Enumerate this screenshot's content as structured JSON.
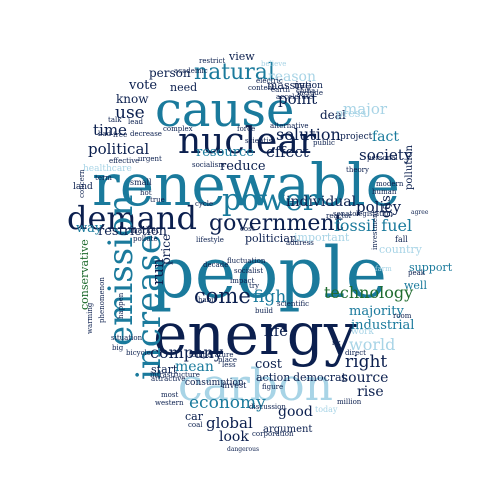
{
  "colors": {
    "navy": "#0b1f4e",
    "teal": "#1a7a9c",
    "light_blue": "#a8d4e6",
    "green": "#1f6b2e",
    "dark_teal": "#0f4c6b"
  },
  "words": [
    {
      "text": "people",
      "color": "teal"
    },
    {
      "text": "renewable",
      "color": "teal"
    },
    {
      "text": "energy",
      "color": "navy"
    },
    {
      "text": "cause",
      "color": "teal"
    },
    {
      "text": "carbon",
      "color": "light_blue"
    },
    {
      "text": "nuclear",
      "color": "navy"
    },
    {
      "text": "demand",
      "color": "navy"
    },
    {
      "text": "power",
      "color": "teal"
    },
    {
      "text": "emission",
      "color": "teal"
    },
    {
      "text": "increase",
      "color": "teal"
    },
    {
      "text": "natural",
      "color": "teal"
    },
    {
      "text": "government",
      "color": "navy"
    },
    {
      "text": "technology",
      "color": "green"
    },
    {
      "text": "fossil fuel",
      "color": "teal"
    },
    {
      "text": "economy",
      "color": "teal"
    },
    {
      "text": "come",
      "color": "navy"
    },
    {
      "text": "fight",
      "color": "teal"
    },
    {
      "text": "solution",
      "color": "navy"
    },
    {
      "text": "policy",
      "color": "navy"
    },
    {
      "text": "individual",
      "color": "navy"
    },
    {
      "text": "company",
      "color": "navy"
    },
    {
      "text": "political",
      "color": "navy"
    },
    {
      "text": "world",
      "color": "light_blue"
    },
    {
      "text": "right",
      "color": "navy"
    },
    {
      "text": "global",
      "color": "navy"
    },
    {
      "text": "use",
      "color": "navy"
    },
    {
      "text": "time",
      "color": "navy"
    },
    {
      "text": "point",
      "color": "navy"
    },
    {
      "text": "effect",
      "color": "navy"
    },
    {
      "text": "society",
      "color": "navy"
    },
    {
      "text": "reason",
      "color": "light_blue"
    },
    {
      "text": "major",
      "color": "light_blue"
    },
    {
      "text": "restriction",
      "color": "navy"
    },
    {
      "text": "resource",
      "color": "teal"
    },
    {
      "text": "reduce",
      "color": "navy"
    },
    {
      "text": "fact",
      "color": "teal"
    },
    {
      "text": "gas",
      "color": "navy"
    },
    {
      "text": "industrial",
      "color": "teal"
    },
    {
      "text": "majority",
      "color": "teal"
    },
    {
      "text": "good",
      "color": "navy"
    },
    {
      "text": "source",
      "color": "navy"
    },
    {
      "text": "rise",
      "color": "navy"
    },
    {
      "text": "cost",
      "color": "navy"
    },
    {
      "text": "life",
      "color": "navy"
    },
    {
      "text": "look",
      "color": "navy"
    },
    {
      "text": "mean",
      "color": "teal"
    },
    {
      "text": "run",
      "color": "navy"
    },
    {
      "text": "price",
      "color": "navy"
    },
    {
      "text": "way",
      "color": "teal"
    },
    {
      "text": "vote",
      "color": "navy"
    },
    {
      "text": "person",
      "color": "navy"
    },
    {
      "text": "know",
      "color": "navy"
    },
    {
      "text": "need",
      "color": "navy"
    },
    {
      "text": "massive",
      "color": "navy"
    },
    {
      "text": "view",
      "color": "navy"
    },
    {
      "text": "deal",
      "color": "navy"
    },
    {
      "text": "start",
      "color": "navy"
    },
    {
      "text": "car",
      "color": "navy"
    },
    {
      "text": "action",
      "color": "navy"
    },
    {
      "text": "democrat",
      "color": "navy"
    },
    {
      "text": "conservative",
      "color": "green"
    },
    {
      "text": "politician",
      "color": "navy"
    },
    {
      "text": "important",
      "color": "light_blue"
    },
    {
      "text": "well",
      "color": "teal"
    },
    {
      "text": "support",
      "color": "teal"
    },
    {
      "text": "argument",
      "color": "navy"
    },
    {
      "text": "market",
      "color": "navy"
    },
    {
      "text": "consumption",
      "color": "navy"
    },
    {
      "text": "invest",
      "color": "navy"
    },
    {
      "text": "today",
      "color": "light_blue"
    },
    {
      "text": "pollution",
      "color": "navy"
    },
    {
      "text": "project",
      "color": "navy"
    },
    {
      "text": "nation",
      "color": "navy"
    },
    {
      "text": "country",
      "color": "light_blue"
    },
    {
      "text": "healthcare",
      "color": "light_blue"
    },
    {
      "text": "land",
      "color": "navy"
    },
    {
      "text": "small",
      "color": "navy"
    },
    {
      "text": "hot",
      "color": "navy"
    },
    {
      "text": "true",
      "color": "navy"
    },
    {
      "text": "alternative",
      "color": "navy"
    },
    {
      "text": "public",
      "color": "navy"
    },
    {
      "text": "scientist",
      "color": "navy"
    },
    {
      "text": "force",
      "color": "navy"
    },
    {
      "text": "complex",
      "color": "navy"
    },
    {
      "text": "decrease",
      "color": "navy"
    },
    {
      "text": "socialism",
      "color": "navy"
    },
    {
      "text": "effective",
      "color": "navy"
    },
    {
      "text": "urgent",
      "color": "navy"
    },
    {
      "text": "free",
      "color": "navy"
    },
    {
      "text": "talk",
      "color": "navy"
    },
    {
      "text": "restrict",
      "color": "navy"
    },
    {
      "text": "content",
      "color": "navy"
    },
    {
      "text": "earth",
      "color": "navy"
    },
    {
      "text": "include",
      "color": "navy"
    },
    {
      "text": "personal",
      "color": "navy"
    },
    {
      "text": "modern",
      "color": "navy"
    },
    {
      "text": "human",
      "color": "navy"
    },
    {
      "text": "peak",
      "color": "navy"
    },
    {
      "text": "legislation",
      "color": "navy"
    },
    {
      "text": "agree",
      "color": "navy"
    },
    {
      "text": "fluctuation",
      "color": "navy"
    },
    {
      "text": "impact",
      "color": "navy"
    },
    {
      "text": "build",
      "color": "navy"
    },
    {
      "text": "scientific",
      "color": "navy"
    },
    {
      "text": "lifestyle",
      "color": "navy"
    },
    {
      "text": "address",
      "color": "navy"
    },
    {
      "text": "reactor",
      "color": "navy"
    },
    {
      "text": "electric",
      "color": "navy"
    },
    {
      "text": "accelerate",
      "color": "navy"
    },
    {
      "text": "temperature",
      "color": "navy"
    },
    {
      "text": "place",
      "color": "navy"
    },
    {
      "text": "infrastructure",
      "color": "navy"
    },
    {
      "text": "attractive",
      "color": "navy"
    },
    {
      "text": "bicycle",
      "color": "navy"
    },
    {
      "text": "less",
      "color": "navy"
    },
    {
      "text": "direct",
      "color": "navy"
    },
    {
      "text": "most",
      "color": "navy"
    },
    {
      "text": "western",
      "color": "navy"
    },
    {
      "text": "coal",
      "color": "navy"
    },
    {
      "text": "discussion",
      "color": "navy"
    },
    {
      "text": "corporation",
      "color": "navy"
    },
    {
      "text": "dangerous",
      "color": "navy"
    },
    {
      "text": "million",
      "color": "navy"
    },
    {
      "text": "situation",
      "color": "navy"
    },
    {
      "text": "figure",
      "color": "navy"
    },
    {
      "text": "happen",
      "color": "navy"
    },
    {
      "text": "big",
      "color": "navy"
    },
    {
      "text": "warming",
      "color": "navy"
    },
    {
      "text": "concern",
      "color": "navy"
    },
    {
      "text": "phenomenon",
      "color": "navy"
    },
    {
      "text": "try",
      "color": "navy"
    },
    {
      "text": "socialist",
      "color": "navy"
    },
    {
      "text": "habit",
      "color": "navy"
    },
    {
      "text": "decade",
      "color": "navy"
    },
    {
      "text": "china",
      "color": "navy"
    },
    {
      "text": "press",
      "color": "light_blue"
    },
    {
      "text": "fall",
      "color": "navy"
    },
    {
      "text": "room",
      "color": "navy"
    },
    {
      "text": "work",
      "color": "light_blue"
    },
    {
      "text": "fix",
      "color": "navy"
    },
    {
      "text": "senator",
      "color": "navy"
    },
    {
      "text": "cycle",
      "color": "navy"
    },
    {
      "text": "pollute",
      "color": "navy"
    },
    {
      "text": "cost",
      "color": "navy"
    },
    {
      "text": "lead",
      "color": "navy"
    },
    {
      "text": "bad",
      "color": "navy"
    },
    {
      "text": "theory",
      "color": "navy"
    },
    {
      "text": "term",
      "color": "navy"
    },
    {
      "text": "believe",
      "color": "light_blue"
    },
    {
      "text": "academic",
      "color": "navy"
    },
    {
      "text": "farm",
      "color": "light_blue"
    },
    {
      "text": "investment",
      "color": "navy"
    }
  ]
}
